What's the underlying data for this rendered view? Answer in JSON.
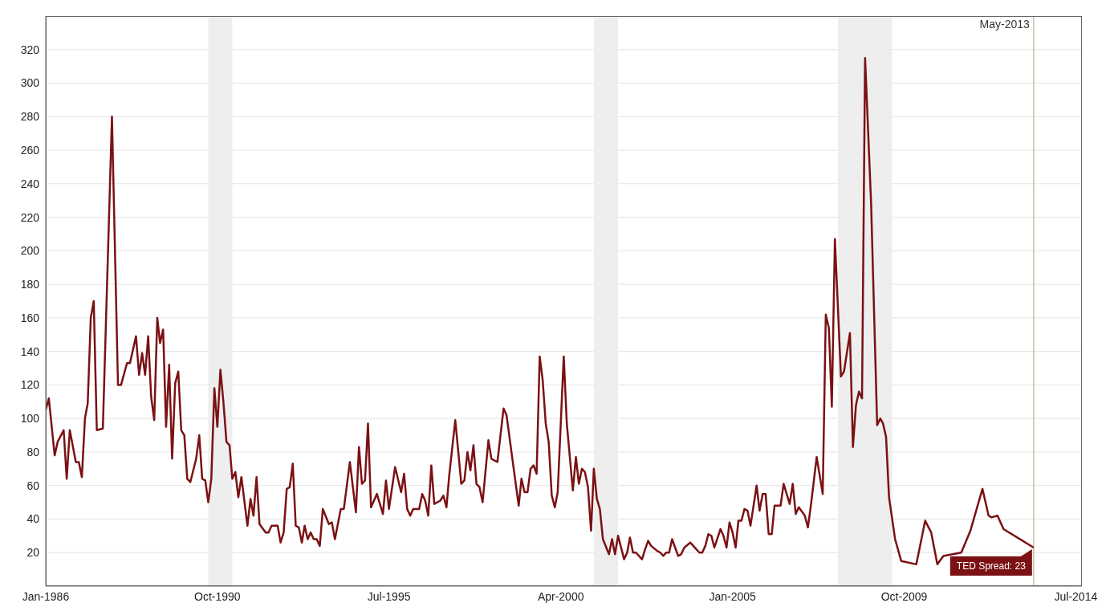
{
  "chart_data": {
    "type": "line",
    "x": [
      "1986-01",
      "1986-02",
      "1986-04",
      "1986-05",
      "1986-07",
      "1986-08",
      "1986-09",
      "1986-11",
      "1986-12",
      "1987-01",
      "1987-02",
      "1987-03",
      "1987-04",
      "1987-05",
      "1987-06",
      "1987-08",
      "1987-11",
      "1988-01",
      "1988-02",
      "1988-04",
      "1988-05",
      "1988-07",
      "1988-08",
      "1988-09",
      "1988-10",
      "1988-11",
      "1988-12",
      "1989-01",
      "1989-02",
      "1989-03",
      "1989-04",
      "1989-05",
      "1989-06",
      "1989-07",
      "1989-08",
      "1989-09",
      "1989-10",
      "1989-11",
      "1989-12",
      "1990-01",
      "1990-03",
      "1990-04",
      "1990-05",
      "1990-06",
      "1990-07",
      "1990-08",
      "1990-09",
      "1990-10",
      "1990-11",
      "1990-12",
      "1991-01",
      "1991-02",
      "1991-03",
      "1991-04",
      "1991-05",
      "1991-06",
      "1991-08",
      "1991-09",
      "1991-10",
      "1991-11",
      "1991-12",
      "1992-02",
      "1992-03",
      "1992-04",
      "1992-06",
      "1992-07",
      "1992-08",
      "1992-09",
      "1992-10",
      "1992-11",
      "1992-12",
      "1993-01",
      "1993-02",
      "1993-03",
      "1993-04",
      "1993-05",
      "1993-06",
      "1993-07",
      "1993-08",
      "1993-09",
      "1993-11",
      "1993-12",
      "1994-01",
      "1994-03",
      "1994-04",
      "1994-06",
      "1994-08",
      "1994-09",
      "1994-10",
      "1994-11",
      "1994-12",
      "1995-01",
      "1995-03",
      "1995-05",
      "1995-06",
      "1995-07",
      "1995-09",
      "1995-11",
      "1995-12",
      "1996-01",
      "1996-02",
      "1996-03",
      "1996-05",
      "1996-06",
      "1996-07",
      "1996-08",
      "1996-09",
      "1996-10",
      "1996-12",
      "1997-01",
      "1997-02",
      "1997-03",
      "1997-05",
      "1997-07",
      "1997-08",
      "1997-09",
      "1997-10",
      "1997-11",
      "1997-12",
      "1998-01",
      "1998-02",
      "1998-04",
      "1998-05",
      "1998-07",
      "1998-09",
      "1998-10",
      "1998-12",
      "1999-02",
      "1999-03",
      "1999-04",
      "1999-05",
      "1999-06",
      "1999-07",
      "1999-08",
      "1999-09",
      "1999-10",
      "1999-11",
      "1999-12",
      "2000-01",
      "2000-02",
      "2000-03",
      "2000-05",
      "2000-06",
      "2000-08",
      "2000-09",
      "2000-10",
      "2000-11",
      "2000-12",
      "2001-01",
      "2001-02",
      "2001-03",
      "2001-04",
      "2001-05",
      "2001-06",
      "2001-08",
      "2001-09",
      "2001-10",
      "2001-11",
      "2002-01",
      "2002-02",
      "2002-03",
      "2002-04",
      "2002-05",
      "2002-07",
      "2002-08",
      "2002-09",
      "2002-10",
      "2002-12",
      "2003-01",
      "2003-02",
      "2003-03",
      "2003-04",
      "2003-05",
      "2003-07",
      "2003-08",
      "2003-09",
      "2003-11",
      "2003-12",
      "2004-01",
      "2004-02",
      "2004-03",
      "2004-04",
      "2004-05",
      "2004-06",
      "2004-07",
      "2004-09",
      "2004-10",
      "2004-11",
      "2004-12",
      "2005-01",
      "2005-02",
      "2005-03",
      "2005-04",
      "2005-05",
      "2005-06",
      "2005-07",
      "2005-09",
      "2005-10",
      "2005-11",
      "2005-12",
      "2006-01",
      "2006-02",
      "2006-03",
      "2006-05",
      "2006-06",
      "2006-08",
      "2006-09",
      "2006-10",
      "2006-11",
      "2007-01",
      "2007-02",
      "2007-03",
      "2007-05",
      "2007-07",
      "2007-08",
      "2007-09",
      "2007-10",
      "2007-11",
      "2008-01",
      "2008-02",
      "2008-04",
      "2008-05",
      "2008-06",
      "2008-07",
      "2008-08",
      "2008-09",
      "2008-11",
      "2009-01",
      "2009-02",
      "2009-03",
      "2009-04",
      "2009-05",
      "2009-07",
      "2009-09",
      "2010-02",
      "2010-05",
      "2010-07",
      "2010-09",
      "2010-11",
      "2011-05",
      "2011-08",
      "2011-12",
      "2012-02",
      "2012-03",
      "2012-05",
      "2012-07",
      "2013-05"
    ],
    "series": [
      {
        "color": "#7b1113",
        "values": [
          105,
          112,
          78,
          86,
          93,
          64,
          93,
          74,
          74,
          65,
          100,
          109,
          160,
          170,
          93,
          94,
          280,
          120,
          120,
          133,
          133,
          149,
          126,
          139,
          126,
          149,
          113,
          99,
          160,
          145,
          153,
          95,
          132,
          76,
          121,
          128,
          93,
          90,
          64,
          62,
          76,
          90,
          64,
          63,
          50,
          64,
          118,
          95,
          129,
          110,
          86,
          84,
          64,
          68,
          53,
          65,
          36,
          52,
          42,
          65,
          37,
          32,
          32,
          36,
          36,
          26,
          32,
          58,
          59,
          73,
          36,
          35,
          26,
          36,
          28,
          32,
          28,
          28,
          24,
          46,
          37,
          38,
          28,
          46,
          46,
          74,
          44,
          83,
          61,
          63,
          97,
          47,
          55,
          43,
          63,
          46,
          71,
          56,
          67,
          46,
          42,
          46,
          46,
          55,
          51,
          42,
          72,
          49,
          51,
          54,
          47,
          66,
          99,
          61,
          63,
          80,
          69,
          84,
          61,
          59,
          50,
          87,
          76,
          74,
          106,
          102,
          75,
          48,
          64,
          56,
          56,
          70,
          72,
          67,
          137,
          123,
          97,
          86,
          54,
          47,
          56,
          137,
          97,
          57,
          77,
          61,
          70,
          68,
          59,
          33,
          70,
          52,
          46,
          28,
          19,
          28,
          19,
          30,
          16,
          20,
          29,
          20,
          20,
          16,
          22,
          27,
          24,
          21,
          20,
          18,
          20,
          20,
          28,
          18,
          19,
          23,
          26,
          24,
          22,
          20,
          20,
          24,
          31,
          30,
          23,
          34,
          30,
          23,
          38,
          32,
          23,
          39,
          39,
          46,
          45,
          36,
          60,
          45,
          55,
          55,
          31,
          31,
          48,
          48,
          61,
          49,
          61,
          43,
          47,
          42,
          35,
          47,
          77,
          55,
          162,
          154,
          107,
          207,
          125,
          128,
          151,
          83,
          108,
          116,
          112,
          315,
          228,
          96,
          100,
          97,
          89,
          53,
          28,
          15,
          13,
          39,
          32,
          13,
          18,
          20,
          33,
          58,
          42,
          41,
          42,
          34,
          23
        ]
      }
    ],
    "xlim": [
      "1986-01",
      "2014-09"
    ],
    "xticks": [
      {
        "value": "1986-01",
        "label": "Jan-1986"
      },
      {
        "value": "1990-10",
        "label": "Oct-1990"
      },
      {
        "value": "1995-07",
        "label": "Jul-1995"
      },
      {
        "value": "2000-04",
        "label": "Apr-2000"
      },
      {
        "value": "2005-01",
        "label": "Jan-2005"
      },
      {
        "value": "2009-10",
        "label": "Oct-2009"
      },
      {
        "value": "2014-07",
        "label": "Jul-2014"
      }
    ],
    "ylim": [
      0,
      340
    ],
    "yticks": [
      20,
      40,
      60,
      80,
      100,
      120,
      140,
      160,
      180,
      200,
      220,
      240,
      260,
      280,
      300,
      320
    ],
    "grid": "y",
    "marker": "none",
    "line_style": "solid",
    "bands": [
      {
        "axis": "x",
        "from": "1990-07",
        "to": "1991-03",
        "color": "#eeeeee"
      },
      {
        "axis": "x",
        "from": "2001-03",
        "to": "2001-11",
        "color": "#eeeeee"
      },
      {
        "axis": "x",
        "from": "2007-12",
        "to": "2009-06",
        "color": "#eeeeee"
      }
    ],
    "ref_lines": [
      {
        "axis": "x",
        "value": "2013-05",
        "label": "May-2013",
        "color": "#c9c0a8"
      }
    ],
    "annotations": [
      {
        "text": "TED Spread: 23",
        "x": "2013-05",
        "y": 23
      }
    ]
  }
}
